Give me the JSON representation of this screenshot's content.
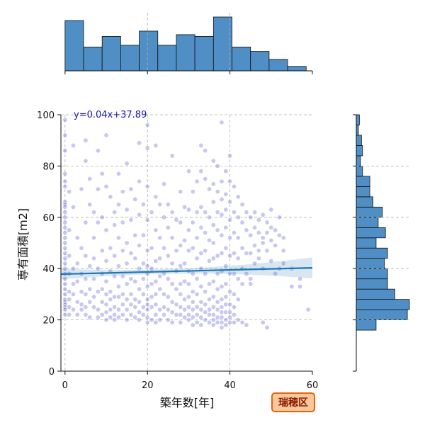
{
  "chart_data": {
    "type": "scatter",
    "xlabel": "築年数[年]",
    "ylabel": "専有面積[m2]",
    "xlim": [
      -1,
      60
    ],
    "ylim": [
      0,
      100
    ],
    "xticks": [
      0,
      20,
      40,
      60
    ],
    "yticks": [
      0,
      20,
      40,
      60,
      80,
      100
    ],
    "grid": true,
    "regression": {
      "label": "y=0.04x+37.89",
      "slope": 0.04,
      "intercept": 37.89,
      "label_color": "#1a1ab0",
      "line_color": "#1f77b4"
    },
    "badge": {
      "text": "瑞穂区",
      "fill": "#f7c99a",
      "border": "#e8640c",
      "text_color": "#8b1a00"
    },
    "colors": {
      "point": "#3a3acc",
      "hist_fill": "#4f8fc6",
      "grid": "#b0b0b0"
    },
    "points": [
      [
        0,
        98
      ],
      [
        0,
        92
      ],
      [
        0,
        86
      ],
      [
        0,
        77
      ],
      [
        0,
        74
      ],
      [
        0,
        72
      ],
      [
        0,
        66
      ],
      [
        0,
        65
      ],
      [
        0,
        64
      ],
      [
        0,
        62
      ],
      [
        0,
        60
      ],
      [
        0,
        58
      ],
      [
        0,
        56
      ],
      [
        0,
        54
      ],
      [
        0,
        52
      ],
      [
        0,
        50
      ],
      [
        0,
        48
      ],
      [
        0,
        46
      ],
      [
        0,
        44
      ],
      [
        0,
        42
      ],
      [
        0,
        40
      ],
      [
        0,
        38
      ],
      [
        0,
        36
      ],
      [
        0,
        34
      ],
      [
        0,
        32
      ],
      [
        0,
        30
      ],
      [
        0,
        28
      ],
      [
        0,
        27
      ],
      [
        0,
        26
      ],
      [
        0,
        25
      ],
      [
        0,
        24
      ],
      [
        0,
        22
      ],
      [
        1,
        70
      ],
      [
        1,
        55
      ],
      [
        1,
        45
      ],
      [
        1,
        38
      ],
      [
        1,
        31
      ],
      [
        1,
        28
      ],
      [
        1,
        25
      ],
      [
        1,
        22
      ],
      [
        2,
        88
      ],
      [
        2,
        64
      ],
      [
        2,
        40
      ],
      [
        2,
        34
      ],
      [
        2,
        30
      ],
      [
        2,
        24
      ],
      [
        3,
        52
      ],
      [
        3,
        42
      ],
      [
        3,
        35
      ],
      [
        3,
        27
      ],
      [
        3,
        22
      ],
      [
        4,
        71
      ],
      [
        4,
        48
      ],
      [
        4,
        38
      ],
      [
        4,
        31
      ],
      [
        4,
        26
      ],
      [
        4,
        24
      ],
      [
        5,
        90
      ],
      [
        5,
        82
      ],
      [
        5,
        58
      ],
      [
        5,
        45
      ],
      [
        5,
        36
      ],
      [
        5,
        30
      ],
      [
        5,
        25
      ],
      [
        5,
        22
      ],
      [
        6,
        75
      ],
      [
        6,
        65
      ],
      [
        6,
        41
      ],
      [
        6,
        32
      ],
      [
        6,
        27
      ],
      [
        6,
        21
      ],
      [
        7,
        62
      ],
      [
        7,
        52
      ],
      [
        7,
        44
      ],
      [
        7,
        36
      ],
      [
        7,
        29
      ],
      [
        7,
        25
      ],
      [
        8,
        86
      ],
      [
        8,
        71
      ],
      [
        8,
        58
      ],
      [
        8,
        40
      ],
      [
        8,
        31
      ],
      [
        8,
        24
      ],
      [
        8,
        21
      ],
      [
        9,
        77
      ],
      [
        9,
        60
      ],
      [
        9,
        47
      ],
      [
        9,
        38
      ],
      [
        9,
        32
      ],
      [
        9,
        27
      ],
      [
        9,
        22
      ],
      [
        10,
        92
      ],
      [
        10,
        72
      ],
      [
        10,
        55
      ],
      [
        10,
        43
      ],
      [
        10,
        35
      ],
      [
        10,
        30
      ],
      [
        10,
        26
      ],
      [
        10,
        23
      ],
      [
        10,
        20
      ],
      [
        11,
        68
      ],
      [
        11,
        48
      ],
      [
        11,
        39
      ],
      [
        11,
        31
      ],
      [
        11,
        28
      ],
      [
        11,
        24
      ],
      [
        11,
        21
      ],
      [
        12,
        62
      ],
      [
        12,
        57
      ],
      [
        12,
        45
      ],
      [
        12,
        37
      ],
      [
        12,
        29
      ],
      [
        12,
        25
      ],
      [
        12,
        22
      ],
      [
        12,
        20
      ],
      [
        13,
        77
      ],
      [
        13,
        65
      ],
      [
        13,
        52
      ],
      [
        13,
        41
      ],
      [
        13,
        33
      ],
      [
        13,
        29
      ],
      [
        13,
        24
      ],
      [
        13,
        21
      ],
      [
        14,
        70
      ],
      [
        14,
        58
      ],
      [
        14,
        47
      ],
      [
        14,
        37
      ],
      [
        14,
        30
      ],
      [
        14,
        26
      ],
      [
        14,
        22
      ],
      [
        15,
        81
      ],
      [
        15,
        63
      ],
      [
        15,
        50
      ],
      [
        15,
        42
      ],
      [
        15,
        34
      ],
      [
        15,
        28
      ],
      [
        15,
        24
      ],
      [
        15,
        20
      ],
      [
        16,
        71
      ],
      [
        16,
        59
      ],
      [
        16,
        46
      ],
      [
        16,
        36
      ],
      [
        16,
        30
      ],
      [
        16,
        26
      ],
      [
        16,
        22
      ],
      [
        17,
        67
      ],
      [
        17,
        53
      ],
      [
        17,
        44
      ],
      [
        17,
        35
      ],
      [
        17,
        28
      ],
      [
        17,
        25
      ],
      [
        17,
        21
      ],
      [
        18,
        89
      ],
      [
        18,
        74
      ],
      [
        18,
        61
      ],
      [
        18,
        49
      ],
      [
        18,
        40
      ],
      [
        18,
        32
      ],
      [
        18,
        27
      ],
      [
        18,
        23
      ],
      [
        18,
        20
      ],
      [
        19,
        65
      ],
      [
        19,
        53
      ],
      [
        19,
        42
      ],
      [
        19,
        36
      ],
      [
        19,
        30
      ],
      [
        19,
        25
      ],
      [
        19,
        22
      ],
      [
        20,
        96
      ],
      [
        20,
        87
      ],
      [
        20,
        72
      ],
      [
        20,
        59
      ],
      [
        20,
        47
      ],
      [
        20,
        41
      ],
      [
        20,
        38
      ],
      [
        20,
        33
      ],
      [
        20,
        28
      ],
      [
        20,
        26
      ],
      [
        20,
        24
      ],
      [
        20,
        21
      ],
      [
        20,
        19
      ],
      [
        21,
        62
      ],
      [
        21,
        48
      ],
      [
        21,
        40
      ],
      [
        21,
        34
      ],
      [
        21,
        29
      ],
      [
        21,
        25
      ],
      [
        21,
        20
      ],
      [
        22,
        88
      ],
      [
        22,
        68
      ],
      [
        22,
        55
      ],
      [
        22,
        43
      ],
      [
        22,
        35
      ],
      [
        22,
        30
      ],
      [
        22,
        26
      ],
      [
        22,
        22
      ],
      [
        22,
        19
      ],
      [
        23,
        65
      ],
      [
        23,
        52
      ],
      [
        23,
        44
      ],
      [
        23,
        37
      ],
      [
        23,
        32
      ],
      [
        23,
        24
      ],
      [
        23,
        20
      ],
      [
        24,
        73
      ],
      [
        24,
        60
      ],
      [
        24,
        48
      ],
      [
        24,
        38
      ],
      [
        24,
        30
      ],
      [
        24,
        25
      ],
      [
        24,
        22
      ],
      [
        25,
        65
      ],
      [
        25,
        56
      ],
      [
        25,
        45
      ],
      [
        25,
        36
      ],
      [
        25,
        29
      ],
      [
        25,
        24
      ],
      [
        25,
        20
      ],
      [
        26,
        84
      ],
      [
        26,
        62
      ],
      [
        26,
        52
      ],
      [
        26,
        42
      ],
      [
        26,
        34
      ],
      [
        26,
        27
      ],
      [
        26,
        23
      ],
      [
        26,
        19
      ],
      [
        27,
        59
      ],
      [
        27,
        47
      ],
      [
        27,
        39
      ],
      [
        27,
        32
      ],
      [
        27,
        26
      ],
      [
        27,
        22
      ],
      [
        28,
        70
      ],
      [
        28,
        58
      ],
      [
        28,
        49
      ],
      [
        28,
        41
      ],
      [
        28,
        34
      ],
      [
        28,
        30
      ],
      [
        28,
        25
      ],
      [
        28,
        22
      ],
      [
        28,
        19
      ],
      [
        29,
        64
      ],
      [
        29,
        51
      ],
      [
        29,
        42
      ],
      [
        29,
        35
      ],
      [
        29,
        28
      ],
      [
        29,
        24
      ],
      [
        29,
        21
      ],
      [
        30,
        78
      ],
      [
        30,
        63
      ],
      [
        30,
        55
      ],
      [
        30,
        47
      ],
      [
        30,
        39
      ],
      [
        30,
        34
      ],
      [
        30,
        29
      ],
      [
        30,
        25
      ],
      [
        30,
        22
      ],
      [
        30,
        20
      ],
      [
        31,
        70
      ],
      [
        31,
        58
      ],
      [
        31,
        48
      ],
      [
        31,
        38
      ],
      [
        31,
        31
      ],
      [
        31,
        27
      ],
      [
        31,
        24
      ],
      [
        31,
        21
      ],
      [
        31,
        18
      ],
      [
        32,
        74
      ],
      [
        32,
        62
      ],
      [
        32,
        52
      ],
      [
        32,
        44
      ],
      [
        32,
        36
      ],
      [
        32,
        30
      ],
      [
        32,
        25
      ],
      [
        32,
        22
      ],
      [
        32,
        19
      ],
      [
        33,
        88
      ],
      [
        33,
        78
      ],
      [
        33,
        64
      ],
      [
        33,
        56
      ],
      [
        33,
        46
      ],
      [
        33,
        40
      ],
      [
        33,
        33
      ],
      [
        33,
        27
      ],
      [
        33,
        24
      ],
      [
        33,
        21
      ],
      [
        33,
        18
      ],
      [
        34,
        86
      ],
      [
        34,
        75
      ],
      [
        34,
        62
      ],
      [
        34,
        54
      ],
      [
        34,
        47
      ],
      [
        34,
        38
      ],
      [
        34,
        31
      ],
      [
        34,
        26
      ],
      [
        34,
        23
      ],
      [
        34,
        20
      ],
      [
        35,
        71
      ],
      [
        35,
        60
      ],
      [
        35,
        51
      ],
      [
        35,
        43
      ],
      [
        35,
        34
      ],
      [
        35,
        28
      ],
      [
        35,
        24
      ],
      [
        35,
        22
      ],
      [
        35,
        19
      ],
      [
        36,
        82
      ],
      [
        36,
        73
      ],
      [
        36,
        66
      ],
      [
        36,
        57
      ],
      [
        36,
        50
      ],
      [
        36,
        44
      ],
      [
        36,
        35
      ],
      [
        36,
        29
      ],
      [
        36,
        25
      ],
      [
        36,
        22
      ],
      [
        36,
        20
      ],
      [
        36,
        18
      ],
      [
        37,
        80
      ],
      [
        37,
        70
      ],
      [
        37,
        62
      ],
      [
        37,
        55
      ],
      [
        37,
        45
      ],
      [
        37,
        38
      ],
      [
        37,
        32
      ],
      [
        37,
        27
      ],
      [
        37,
        24
      ],
      [
        37,
        21
      ],
      [
        37,
        19
      ],
      [
        38,
        97
      ],
      [
        38,
        74
      ],
      [
        38,
        67
      ],
      [
        38,
        61
      ],
      [
        38,
        53
      ],
      [
        38,
        46
      ],
      [
        38,
        39
      ],
      [
        38,
        33
      ],
      [
        38,
        28
      ],
      [
        38,
        25
      ],
      [
        38,
        23
      ],
      [
        38,
        21
      ],
      [
        38,
        19
      ],
      [
        38,
        17
      ],
      [
        39,
        78
      ],
      [
        39,
        69
      ],
      [
        39,
        63
      ],
      [
        39,
        56
      ],
      [
        39,
        48
      ],
      [
        39,
        41
      ],
      [
        39,
        34
      ],
      [
        39,
        29
      ],
      [
        39,
        26
      ],
      [
        39,
        23
      ],
      [
        39,
        20
      ],
      [
        39,
        18
      ],
      [
        40,
        84
      ],
      [
        40,
        74
      ],
      [
        40,
        66
      ],
      [
        40,
        59
      ],
      [
        40,
        52
      ],
      [
        40,
        45
      ],
      [
        40,
        38
      ],
      [
        40,
        31
      ],
      [
        40,
        26
      ],
      [
        40,
        23
      ],
      [
        40,
        21
      ],
      [
        40,
        19
      ],
      [
        41,
        72
      ],
      [
        41,
        62
      ],
      [
        41,
        54
      ],
      [
        41,
        46
      ],
      [
        41,
        38
      ],
      [
        41,
        30
      ],
      [
        41,
        25
      ],
      [
        41,
        22
      ],
      [
        41,
        19
      ],
      [
        42,
        68
      ],
      [
        42,
        60
      ],
      [
        42,
        52
      ],
      [
        42,
        44
      ],
      [
        42,
        36
      ],
      [
        42,
        28
      ],
      [
        42,
        20
      ],
      [
        43,
        65
      ],
      [
        43,
        58
      ],
      [
        43,
        48
      ],
      [
        43,
        40
      ],
      [
        43,
        34
      ],
      [
        43,
        19
      ],
      [
        44,
        62
      ],
      [
        44,
        55
      ],
      [
        44,
        46
      ],
      [
        44,
        38
      ],
      [
        44,
        18
      ],
      [
        45,
        60
      ],
      [
        45,
        53
      ],
      [
        45,
        46
      ],
      [
        45,
        36
      ],
      [
        45,
        34
      ],
      [
        46,
        62
      ],
      [
        46,
        56
      ],
      [
        46,
        49
      ],
      [
        46,
        42
      ],
      [
        47,
        59
      ],
      [
        47,
        54
      ],
      [
        47,
        47
      ],
      [
        47,
        44
      ],
      [
        48,
        61
      ],
      [
        48,
        52
      ],
      [
        48,
        50
      ],
      [
        48,
        40
      ],
      [
        48,
        19
      ],
      [
        49,
        58
      ],
      [
        49,
        54
      ],
      [
        49,
        47
      ],
      [
        49,
        17
      ],
      [
        50,
        63
      ],
      [
        50,
        56
      ],
      [
        50,
        51
      ],
      [
        50,
        43
      ],
      [
        51,
        55
      ],
      [
        51,
        49
      ],
      [
        51,
        38
      ],
      [
        52,
        60
      ],
      [
        52,
        53
      ],
      [
        52,
        40
      ],
      [
        53,
        52
      ],
      [
        53,
        47
      ],
      [
        53,
        42
      ],
      [
        55,
        40
      ],
      [
        55,
        33
      ],
      [
        57,
        36
      ],
      [
        57,
        33
      ],
      [
        59,
        24
      ]
    ]
  }
}
